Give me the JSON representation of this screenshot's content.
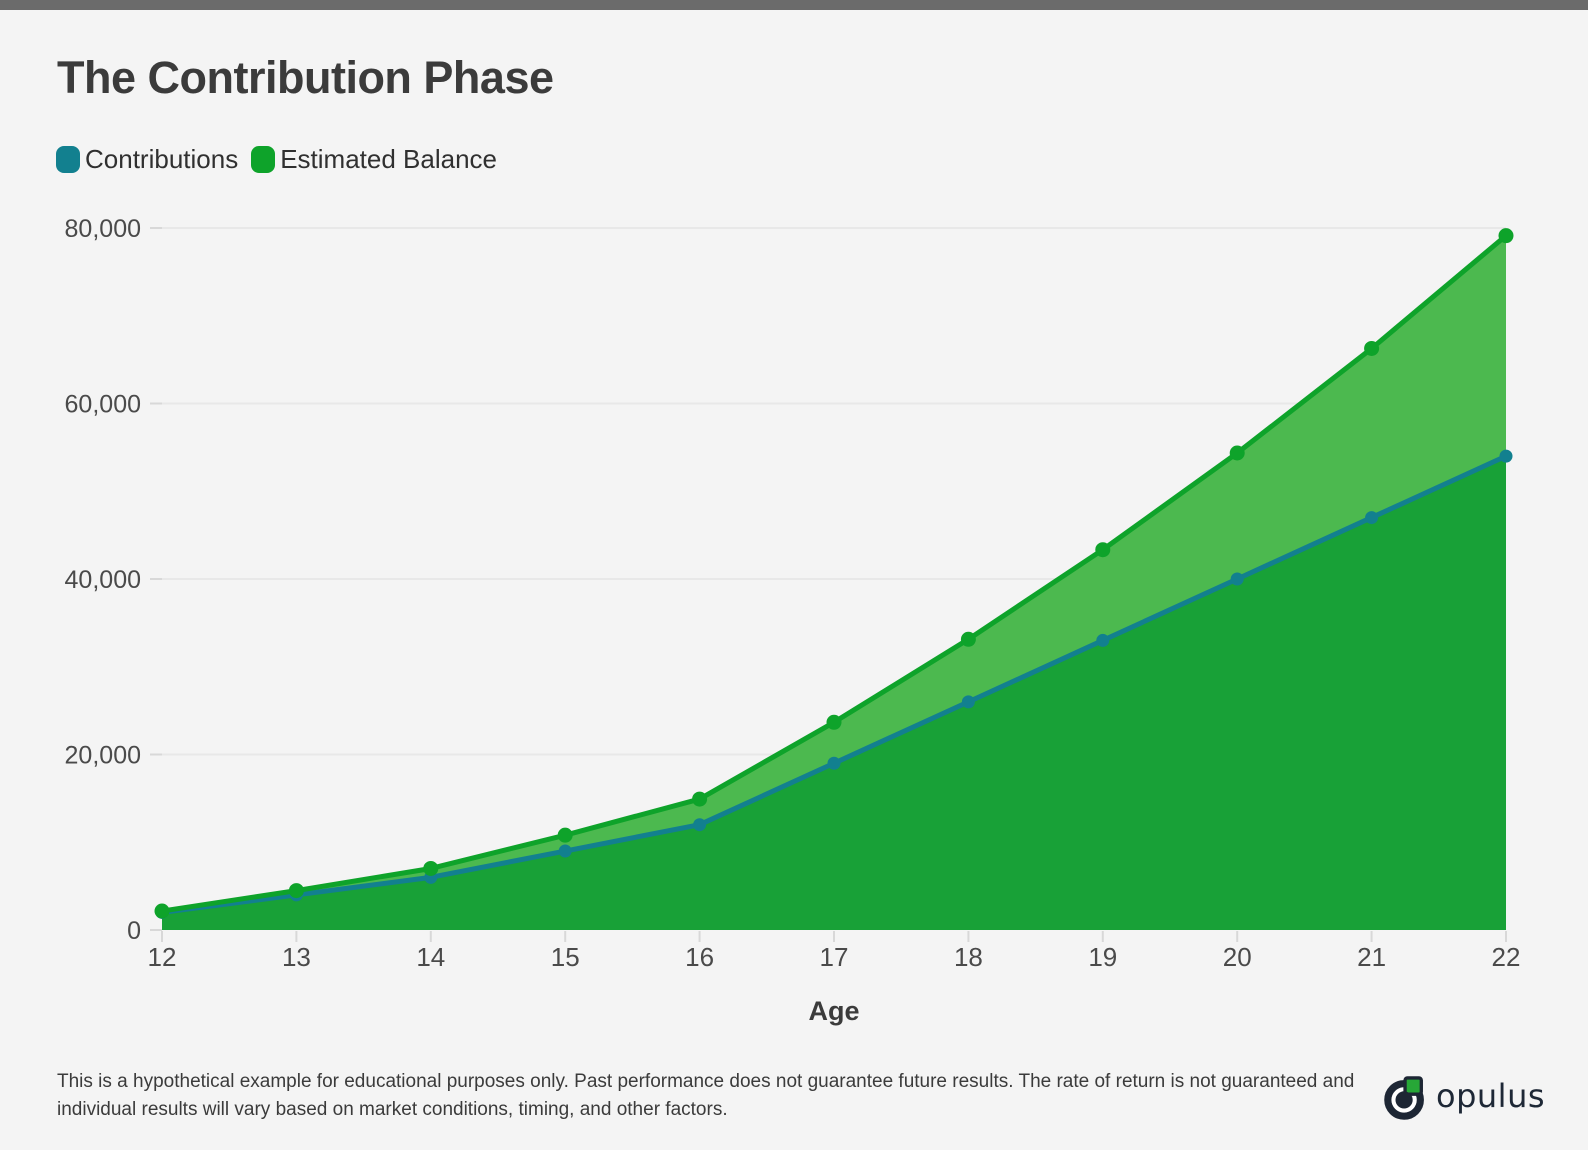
{
  "page": {
    "background_color": "#f4f4f4",
    "top_bar_color": "#6b6b6b"
  },
  "header": {
    "title": "The Contribution Phase"
  },
  "legend": {
    "items": [
      {
        "label": "Contributions",
        "color": "#12808f"
      },
      {
        "label": "Estimated Balance",
        "color": "#0ea32a"
      }
    ]
  },
  "chart_data": {
    "type": "area",
    "x": [
      12,
      13,
      14,
      15,
      16,
      17,
      18,
      19,
      20,
      21,
      22
    ],
    "xlabel": "Age",
    "ylabel": "",
    "ylim": [
      0,
      80000
    ],
    "grid": true,
    "legend_position": "top-left",
    "y_ticks": [
      {
        "value": 0,
        "label": "0"
      },
      {
        "value": 20000,
        "label": "20,000"
      },
      {
        "value": 40000,
        "label": "40,000"
      },
      {
        "value": 60000,
        "label": "60,000"
      },
      {
        "value": 80000,
        "label": "80,000"
      }
    ],
    "series": [
      {
        "name": "Contributions",
        "values": [
          2000,
          4000,
          6000,
          9000,
          12000,
          19000,
          26000,
          33000,
          40000,
          47000,
          54000
        ],
        "line_color": "#12808f",
        "fill_color": "#18a137"
      },
      {
        "name": "Estimated Balance",
        "values": [
          2160,
          4490,
          7010,
          10810,
          14920,
          23670,
          33130,
          43340,
          54360,
          66270,
          79130
        ],
        "line_color": "#0ea32a",
        "fill_color": "#4cb94f"
      }
    ]
  },
  "footer": {
    "disclaimer_lines": [
      "This is a hypothetical example for educational purposes only. Past performance does not guarantee future results. The rate of return is not guaranteed and",
      "individual results will vary based on market conditions, timing, and other factors."
    ],
    "logo_text": "opulus",
    "logo_colors": {
      "dark": "#1d2634",
      "green": "#27a737"
    }
  },
  "style_colors": {
    "gridline": "#e8e8e8",
    "tick": "#d8d8d8",
    "tick_label": "#4a4a4a"
  }
}
